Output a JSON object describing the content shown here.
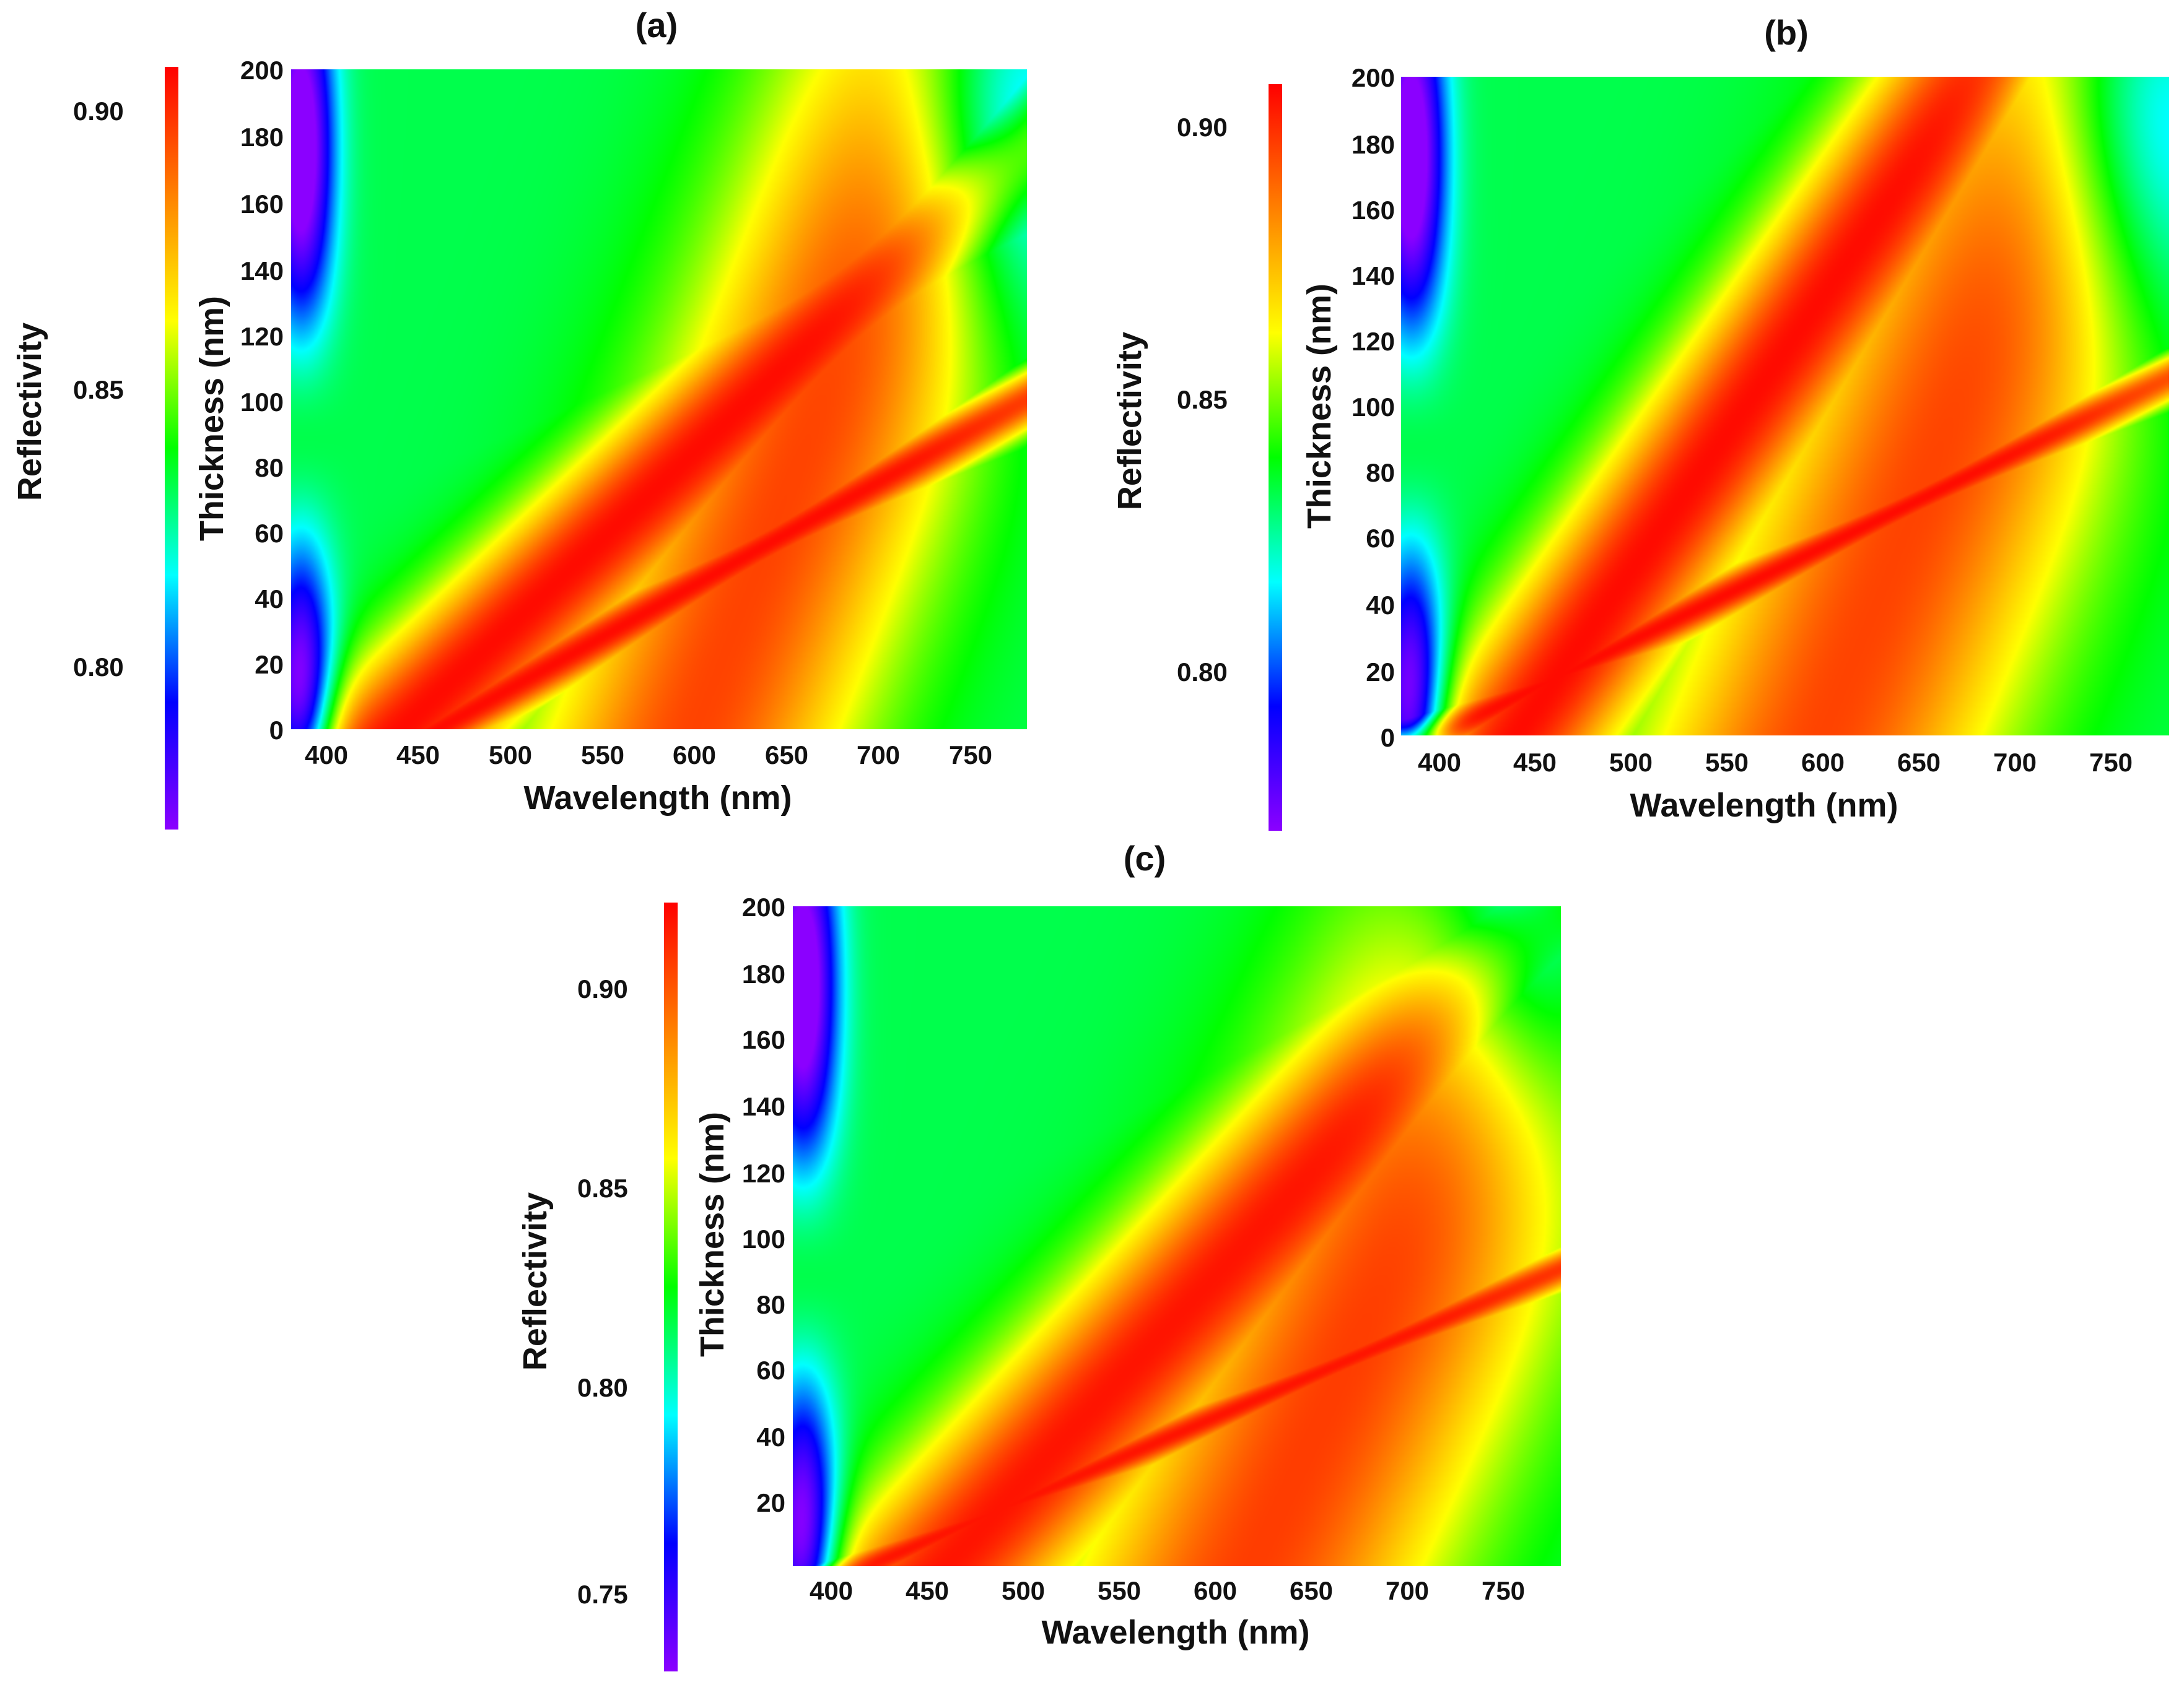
{
  "chart_data": [
    {
      "type": "heatmap",
      "panel_label": "(a)",
      "xlabel": "Wavelength (nm)",
      "ylabel": "Thickness (nm)",
      "colorbar_label": "Reflectivity",
      "xlim": [
        380,
        780
      ],
      "ylim": [
        0,
        200
      ],
      "xticks": [
        "400",
        "450",
        "500",
        "550",
        "600",
        "650",
        "700",
        "750"
      ],
      "yticks": [
        "0",
        "20",
        "40",
        "60",
        "80",
        "100",
        "120",
        "140",
        "160",
        "180",
        "200"
      ],
      "clim": [
        0.77,
        0.907
      ],
      "colorbar_ticks": [
        "0.80",
        "0.85",
        "0.90"
      ],
      "colormap": [
        "#8b00ff",
        "#0000ff",
        "#00ffff",
        "#00ff00",
        "#ffff00",
        "#ff8000",
        "#ff0000"
      ],
      "bands": [
        {
          "slope_nm_per_nm": 3.2,
          "wavelength_at_0nm": 460,
          "peak": 0.905,
          "width_nm": 34
        },
        {
          "slope_nm_per_nm": 1.9,
          "wavelength_at_0nm": 440,
          "peak": 0.905,
          "width_nm": 60
        },
        {
          "slope_nm_per_nm": 0.7,
          "wavelength_at_0nm": 600,
          "peak": 0.895,
          "width_nm": 90
        }
      ]
    },
    {
      "type": "heatmap",
      "panel_label": "(b)",
      "xlabel": "Wavelength (nm)",
      "ylabel": "Thickness (nm)",
      "colorbar_label": "Reflectivity",
      "xlim": [
        380,
        780
      ],
      "ylim": [
        0,
        200
      ],
      "xticks": [
        "400",
        "450",
        "500",
        "550",
        "600",
        "650",
        "700",
        "750"
      ],
      "yticks": [
        "0",
        "20",
        "40",
        "60",
        "80",
        "100",
        "120",
        "140",
        "160",
        "180",
        "200"
      ],
      "clim": [
        0.77,
        0.907
      ],
      "colorbar_ticks": [
        "0.80",
        "0.85",
        "0.90"
      ],
      "colormap": [
        "#8b00ff",
        "#0000ff",
        "#00ffff",
        "#00ff00",
        "#ffff00",
        "#ff8000",
        "#ff0000"
      ],
      "bands": [
        {
          "slope_nm_per_nm": 3.5,
          "wavelength_at_0nm": 400,
          "peak": 0.905,
          "width_nm": 30
        },
        {
          "slope_nm_per_nm": 1.2,
          "wavelength_at_0nm": 440,
          "peak": 0.905,
          "width_nm": 55
        },
        {
          "slope_nm_per_nm": 0.7,
          "wavelength_at_0nm": 600,
          "peak": 0.895,
          "width_nm": 95
        }
      ]
    },
    {
      "type": "heatmap",
      "panel_label": "(c)",
      "xlabel": "Wavelength (nm)",
      "ylabel": "Thickness (nm)",
      "colorbar_label": "Reflectivity",
      "xlim": [
        380,
        780
      ],
      "ylim": [
        0,
        200
      ],
      "xticks": [
        "400",
        "450",
        "500",
        "550",
        "600",
        "650",
        "700",
        "750"
      ],
      "yticks": [
        "20",
        "40",
        "60",
        "80",
        "100",
        "120",
        "140",
        "160",
        "180",
        "200"
      ],
      "clim": [
        0.73,
        0.92
      ],
      "colorbar_ticks": [
        "0.75",
        "0.80",
        "0.85",
        "0.90"
      ],
      "colormap": [
        "#8b00ff",
        "#0000ff",
        "#00ffff",
        "#00ff00",
        "#ffff00",
        "#ff8000",
        "#ff0000"
      ],
      "bands": [
        {
          "slope_nm_per_nm": 4.0,
          "wavelength_at_0nm": 420,
          "peak": 0.915,
          "width_nm": 30
        },
        {
          "slope_nm_per_nm": 1.6,
          "wavelength_at_0nm": 460,
          "peak": 0.915,
          "width_nm": 70
        },
        {
          "slope_nm_per_nm": 0.8,
          "wavelength_at_0nm": 620,
          "peak": 0.905,
          "width_nm": 100
        }
      ]
    }
  ]
}
